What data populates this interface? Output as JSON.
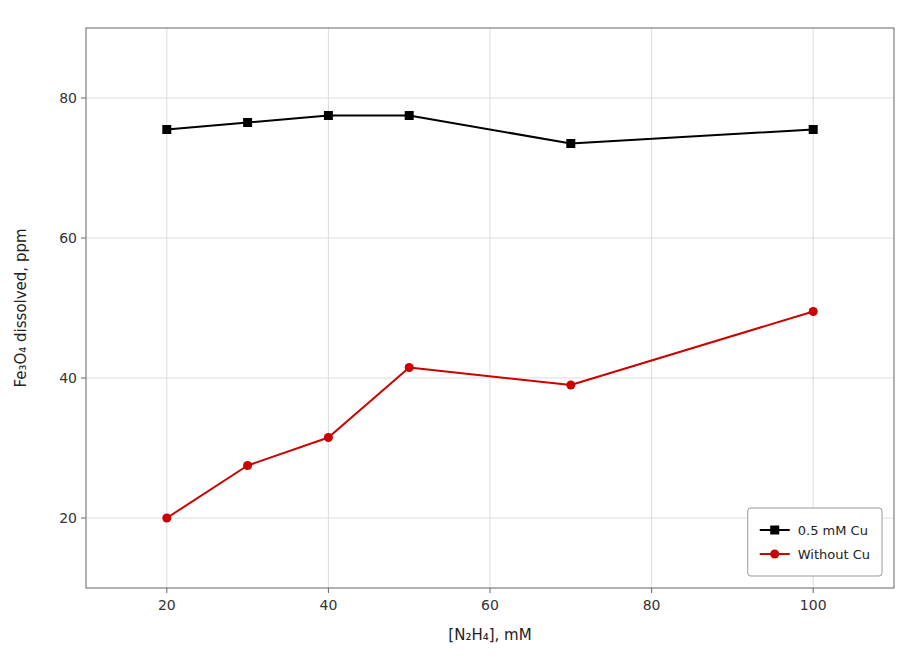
{
  "chart_data": {
    "type": "line",
    "xlabel": "[N₂H₄], mM",
    "ylabel": "Fe₃O₄ dissolved, ppm",
    "x": [
      20,
      30,
      40,
      50,
      70,
      100
    ],
    "series": [
      {
        "name": "0.5 mM Cu",
        "color": "#000000",
        "marker": "square",
        "values": [
          75.5,
          76.5,
          77.5,
          77.5,
          73.5,
          75.5
        ]
      },
      {
        "name": "Without Cu",
        "color": "#cc0000",
        "marker": "circle",
        "values": [
          20.0,
          27.5,
          31.5,
          41.5,
          39.0,
          49.5
        ]
      }
    ],
    "xlim": [
      10,
      110
    ],
    "ylim": [
      10,
      90
    ],
    "xticks": [
      20,
      40,
      60,
      80,
      100
    ],
    "yticks": [
      20,
      40,
      60,
      80
    ],
    "grid": true,
    "legend": "lower right"
  }
}
